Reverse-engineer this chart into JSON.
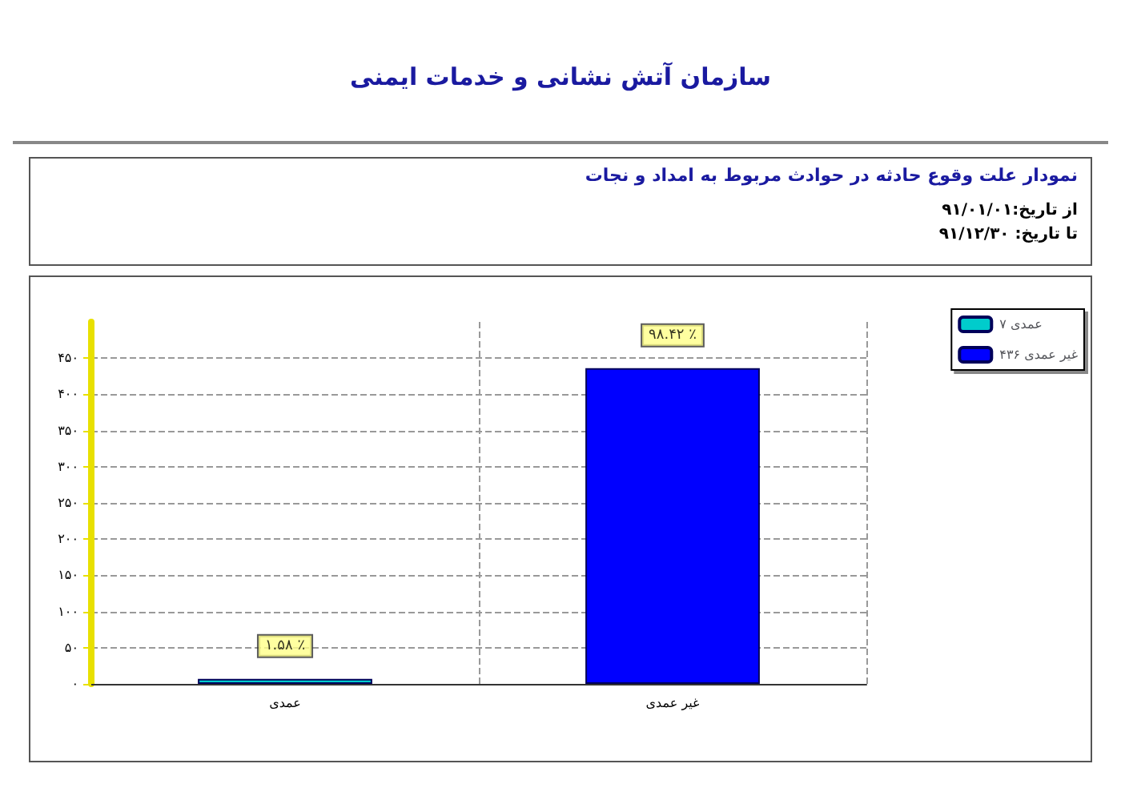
{
  "chart_data": {
    "type": "bar",
    "title": "سازمان آتش نشانی و خدمات ایمنی",
    "subtitle": "نمودار علت وقوع حادثه در حوادث مربوط به امداد و نجات",
    "annotations": [
      "از تاریخ:۹۱/۰۱/۰۱",
      "تا تاریخ: ۹۱/۱۲/۳۰",
      {
        "text": "۱.۵۸ ٪",
        "x": "عمدی",
        "y": 7
      },
      {
        "text": "۹۸.۴۲ ٪",
        "x": "غیر عمدی",
        "y": 436
      }
    ],
    "categories": [
      "عمدی",
      "غیر عمدی"
    ],
    "series": [
      {
        "name": "عمدی ۷",
        "color": "#00cccc",
        "values": [
          7,
          null
        ]
      },
      {
        "name": "غیر عمدی ۴۳۶",
        "color": "#0000ff",
        "values": [
          null,
          436
        ]
      }
    ],
    "stacked": true,
    "ylim": [
      0,
      500
    ],
    "yticks": [
      {
        "value": 0,
        "label": "۰"
      },
      {
        "value": 50,
        "label": "۵۰"
      },
      {
        "value": 100,
        "label": "۱۰۰"
      },
      {
        "value": 150,
        "label": "۱۵۰"
      },
      {
        "value": 200,
        "label": "۲۰۰"
      },
      {
        "value": 250,
        "label": "۲۵۰"
      },
      {
        "value": 300,
        "label": "۳۰۰"
      },
      {
        "value": 350,
        "label": "۳۵۰"
      },
      {
        "value": 400,
        "label": "۴۰۰"
      },
      {
        "value": 450,
        "label": "۴۵۰"
      }
    ],
    "grid": true,
    "legend": "right"
  }
}
